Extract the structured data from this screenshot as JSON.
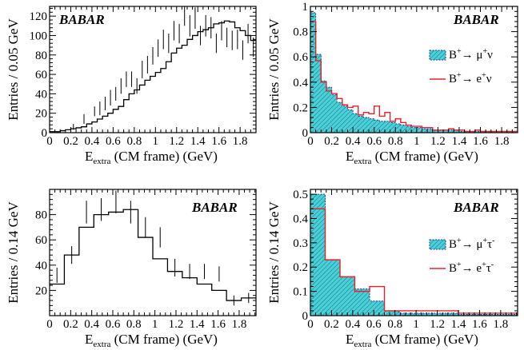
{
  "chart_data": [
    {
      "type": "histogram",
      "panel": "top-left",
      "badge": "BABAR",
      "xlabel": "E_extra (CM frame) (GeV)",
      "xlabel_main": "E",
      "xlabel_sub": "extra",
      "xlabel_rest": " (CM frame) (GeV)",
      "ylabel": "Entries / 0.05 GeV",
      "xlim": [
        0,
        1.95
      ],
      "ylim": [
        0,
        130
      ],
      "xticks": [
        0,
        0.2,
        0.4,
        0.6,
        0.8,
        1,
        1.2,
        1.4,
        1.6,
        1.8
      ],
      "xtick_labels": [
        "0",
        "0.2",
        "0.4",
        "0.6",
        "0.8",
        "1",
        "1.2",
        "1.4",
        "1.6",
        "1.8"
      ],
      "yticks": [
        0,
        20,
        40,
        60,
        80,
        100,
        120
      ],
      "ytick_labels": [
        "0",
        "20",
        "40",
        "60",
        "80",
        "100",
        "120"
      ],
      "bin_width": 0.05,
      "histogram": [
        1,
        1,
        2,
        3,
        4,
        5,
        6,
        9,
        11,
        14,
        17,
        20,
        24,
        27,
        34,
        40,
        44,
        49,
        54,
        58,
        62,
        66,
        73,
        82,
        87,
        90,
        96,
        100,
        104,
        106,
        108,
        112,
        113,
        115,
        114,
        108,
        105,
        100,
        95
      ],
      "points": [
        [
          0.225,
          6,
          3
        ],
        [
          0.325,
          14,
          5
        ],
        [
          0.425,
          22,
          5
        ],
        [
          0.475,
          25,
          7
        ],
        [
          0.525,
          30,
          7
        ],
        [
          0.575,
          36,
          8
        ],
        [
          0.625,
          40,
          7
        ],
        [
          0.675,
          48,
          8
        ],
        [
          0.725,
          55,
          8
        ],
        [
          0.775,
          55,
          8
        ],
        [
          0.825,
          48,
          8
        ],
        [
          0.875,
          65,
          9
        ],
        [
          0.925,
          70,
          9
        ],
        [
          0.975,
          79,
          9
        ],
        [
          1.025,
          87,
          9
        ],
        [
          1.075,
          96,
          10
        ],
        [
          1.125,
          92,
          10
        ],
        [
          1.175,
          105,
          10
        ],
        [
          1.225,
          102,
          10
        ],
        [
          1.275,
          120,
          10
        ],
        [
          1.325,
          110,
          11
        ],
        [
          1.375,
          118,
          11
        ],
        [
          1.425,
          100,
          10
        ],
        [
          1.475,
          110,
          11
        ],
        [
          1.525,
          108,
          11
        ],
        [
          1.575,
          92,
          10
        ],
        [
          1.625,
          105,
          10
        ],
        [
          1.675,
          98,
          10
        ],
        [
          1.725,
          95,
          10
        ],
        [
          1.775,
          96,
          10
        ],
        [
          1.825,
          85,
          10
        ],
        [
          1.875,
          102,
          10
        ],
        [
          1.925,
          88,
          10
        ]
      ]
    },
    {
      "type": "histogram",
      "panel": "top-right",
      "badge": "BABAR",
      "xlabel": "E_extra (CM frame) (GeV)",
      "xlabel_main": "E",
      "xlabel_sub": "extra",
      "xlabel_rest": " (CM frame) (GeV)",
      "ylabel": "Entries / 0.05 GeV",
      "xlim": [
        0,
        1.95
      ],
      "ylim": [
        0,
        1
      ],
      "xticks": [
        0,
        0.2,
        0.4,
        0.6,
        0.8,
        1,
        1.2,
        1.4,
        1.6,
        1.8
      ],
      "xtick_labels": [
        "0",
        "0.2",
        "0.4",
        "0.6",
        "0.8",
        "1",
        "1.2",
        "1.4",
        "1.6",
        "1.8"
      ],
      "yticks": [
        0,
        0.2,
        0.4,
        0.6,
        0.8,
        1
      ],
      "ytick_labels": [
        "0",
        "0.2",
        "0.4",
        "0.6",
        "0.8",
        "1"
      ],
      "bin_width": 0.05,
      "legend": {
        "placement": "right",
        "entries": [
          {
            "base": "B",
            "sup1": "+",
            "mid": "→ μ",
            "sup2": "+",
            "end": "ν",
            "style": "hatched"
          },
          {
            "base": "B",
            "sup1": "+",
            "mid": "→ e",
            "sup2": "+",
            "end": "ν",
            "style": "red-line"
          }
        ]
      },
      "series": [
        {
          "name": "B+ → μ+ν",
          "style": "hatched",
          "values": [
            0.95,
            0.62,
            0.41,
            0.36,
            0.3,
            0.24,
            0.21,
            0.18,
            0.15,
            0.13,
            0.12,
            0.11,
            0.1,
            0.09,
            0.09,
            0.08,
            0.07,
            0.06,
            0.05,
            0.04,
            0.04,
            0.03,
            0.03,
            0.02,
            0.02,
            0.02,
            0.02,
            0.02,
            0.01,
            0.01,
            0.01,
            0.01,
            0.01,
            0.01,
            0.01,
            0.01,
            0.01,
            0.01,
            0.01
          ]
        },
        {
          "name": "B+ → e+ν",
          "style": "red-line",
          "values": [
            0.88,
            0.57,
            0.4,
            0.33,
            0.31,
            0.27,
            0.22,
            0.2,
            0.21,
            0.14,
            0.16,
            0.15,
            0.21,
            0.13,
            0.16,
            0.09,
            0.11,
            0.08,
            0.06,
            0.05,
            0.05,
            0.04,
            0.04,
            0.02,
            0.02,
            0.02,
            0.03,
            0.02,
            0.02,
            0.01,
            0.01,
            0.02,
            0.01,
            0.01,
            0.01,
            0.01,
            0.01,
            0.01,
            0.01
          ]
        }
      ]
    },
    {
      "type": "histogram",
      "panel": "bottom-left",
      "badge": "BABAR",
      "xlabel": "E_extra (CM frame) (GeV)",
      "xlabel_main": "E",
      "xlabel_sub": "extra",
      "xlabel_rest": " (CM frame) (GeV)",
      "ylabel": "Entries / 0.14 GeV",
      "xlim": [
        0,
        1.96
      ],
      "ylim": [
        0,
        100
      ],
      "xticks": [
        0,
        0.2,
        0.4,
        0.6,
        0.8,
        1,
        1.2,
        1.4,
        1.6,
        1.8
      ],
      "xtick_labels": [
        "0",
        "0.2",
        "0.4",
        "0.6",
        "0.8",
        "1",
        "1.2",
        "1.4",
        "1.6",
        "1.8"
      ],
      "yticks": [
        20,
        40,
        60,
        80
      ],
      "ytick_labels": [
        "20",
        "40",
        "60",
        "80"
      ],
      "bin_width": 0.14,
      "histogram": [
        25,
        48,
        70,
        80,
        82,
        84,
        62,
        45,
        35,
        30,
        25,
        20,
        12,
        14
      ],
      "points": [
        [
          0.07,
          32,
          6
        ],
        [
          0.21,
          48,
          7
        ],
        [
          0.35,
          82,
          9
        ],
        [
          0.49,
          84,
          9
        ],
        [
          0.63,
          90,
          9
        ],
        [
          0.77,
          82,
          9
        ],
        [
          0.91,
          70,
          8
        ],
        [
          1.05,
          62,
          8
        ],
        [
          1.19,
          38,
          7
        ],
        [
          1.33,
          35,
          6
        ],
        [
          1.47,
          35,
          6
        ],
        [
          1.61,
          33,
          6
        ],
        [
          1.75,
          12,
          4
        ],
        [
          1.89,
          14,
          4
        ]
      ]
    },
    {
      "type": "histogram",
      "panel": "bottom-right",
      "badge": "BABAR",
      "xlabel": "E_extra (CM frame) (GeV)",
      "xlabel_main": "E",
      "xlabel_sub": "extra",
      "xlabel_rest": " (CM frame) (GeV)",
      "ylabel": "Entries / 0.14 GeV",
      "xlim": [
        0,
        1.96
      ],
      "ylim": [
        0,
        0.52
      ],
      "xticks": [
        0,
        0.2,
        0.4,
        0.6,
        0.8,
        1,
        1.2,
        1.4,
        1.6,
        1.8
      ],
      "xtick_labels": [
        "0",
        "0.2",
        "0.4",
        "0.6",
        "0.8",
        "1",
        "1.2",
        "1.4",
        "1.6",
        "1.8"
      ],
      "yticks": [
        0,
        0.1,
        0.2,
        0.3,
        0.4,
        0.5
      ],
      "ytick_labels": [
        "0",
        "0.1",
        "0.2",
        "0.3",
        "0.4",
        "0.5"
      ],
      "bin_width": 0.14,
      "legend": {
        "placement": "right",
        "entries": [
          {
            "base": "B",
            "sup1": "+",
            "mid": "→ μ",
            "sup2": "+",
            "end": "τ",
            "sup3": "-",
            "style": "hatched"
          },
          {
            "base": "B",
            "sup1": "+",
            "mid": "→ e",
            "sup2": "+",
            "end": "τ",
            "sup3": "-",
            "style": "red-line"
          }
        ]
      },
      "series": [
        {
          "name": "B+ → μ+τ-",
          "style": "hatched",
          "values": [
            0.5,
            0.23,
            0.16,
            0.11,
            0.06,
            0.02,
            0.01,
            0.01,
            0.01,
            0.01,
            0.005,
            0.005,
            0.005,
            0.005
          ]
        },
        {
          "name": "B+ → e+τ-",
          "style": "red-line",
          "values": [
            0.44,
            0.23,
            0.16,
            0.1,
            0.12,
            0.02,
            0.02,
            0.02,
            0.02,
            0.02,
            0.01,
            0.01,
            0.01,
            0.01
          ]
        }
      ]
    }
  ]
}
